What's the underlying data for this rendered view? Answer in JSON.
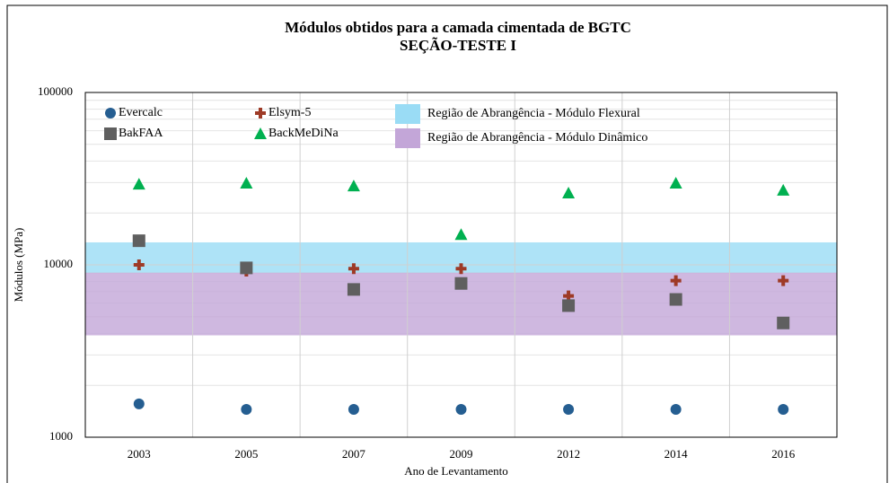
{
  "chart_data": {
    "type": "scatter",
    "title": [
      "Módulos obtidos para a camada cimentada de BGTC",
      "SEÇÃO-TESTE I"
    ],
    "x_label": "Ano de Levantamento",
    "y_label": "Módulos (MPa)",
    "categories": [
      "2003",
      "2005",
      "2007",
      "2009",
      "2012",
      "2014",
      "2016"
    ],
    "y_log": true,
    "minor_grid": true,
    "ylim": [
      1000,
      100000
    ],
    "yticks": [
      1000,
      10000,
      100000
    ],
    "series": [
      {
        "name": "Evercalc",
        "color": "#255e91",
        "marker": "circle",
        "values": [
          1560,
          1450,
          1450,
          1450,
          1450,
          1450,
          1450
        ]
      },
      {
        "name": "Elsym-5",
        "color": "#9e3a26",
        "marker": "plus",
        "values": [
          10000,
          9200,
          9500,
          9500,
          6600,
          8100,
          8100
        ]
      },
      {
        "name": "BakFAA",
        "color": "#5f5f5f",
        "marker": "square",
        "values": [
          13800,
          9600,
          7200,
          7800,
          5800,
          6300,
          4600
        ]
      },
      {
        "name": "BackMeDiNa",
        "color": "#00b050",
        "marker": "triangle",
        "values": [
          29400,
          29800,
          28700,
          15000,
          26100,
          29800,
          27100
        ]
      }
    ],
    "bands": [
      {
        "name": "Região de Abrangência  - Módulo Flexural",
        "color": "#9adcf5",
        "range": [
          9000,
          13500
        ]
      },
      {
        "name": "Região de Abrangência  - Módulo Dinâmico",
        "color": "#c3a6d8",
        "range": [
          3900,
          9000
        ]
      }
    ]
  }
}
